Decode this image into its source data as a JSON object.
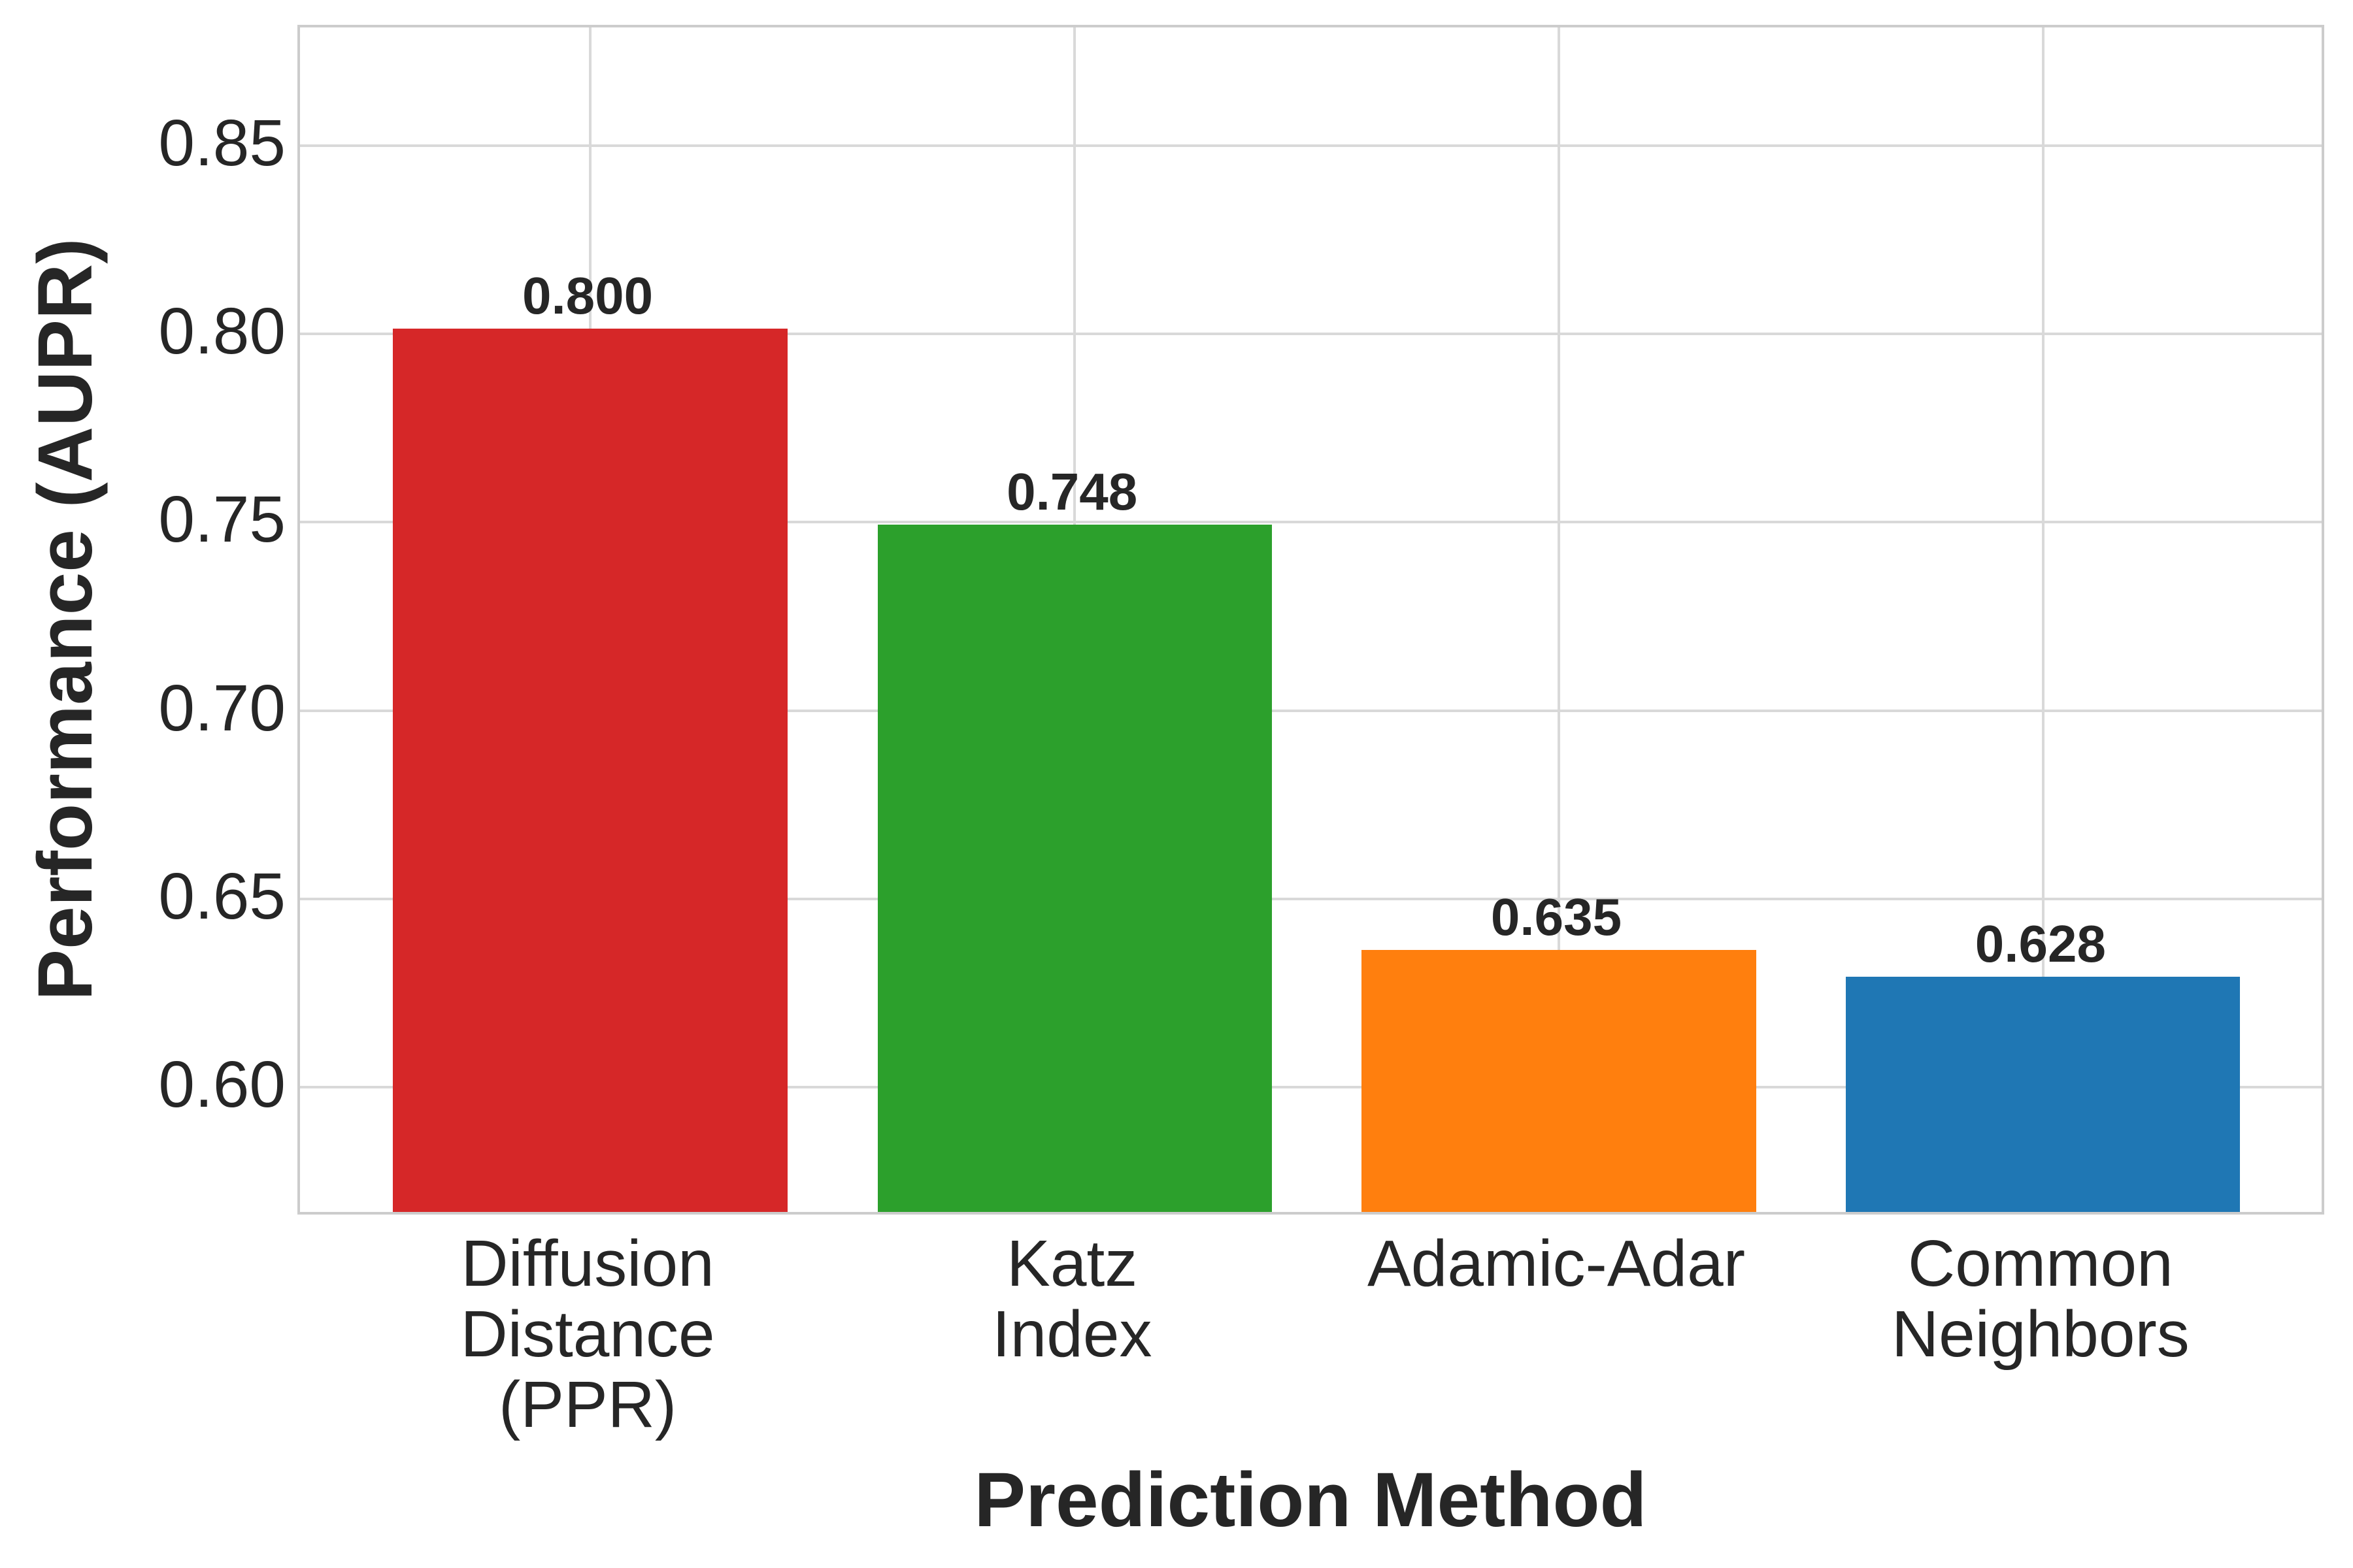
{
  "chart_data": {
    "type": "bar",
    "title": "",
    "xlabel": "Prediction Method",
    "ylabel": "Performance (AUPR)",
    "categories": [
      "Diffusion\nDistance\n(PPR)",
      "Katz\nIndex",
      "Adamic-Adar",
      "Common\nNeighbors"
    ],
    "values": [
      0.8,
      0.748,
      0.635,
      0.628
    ],
    "value_labels": [
      "0.800",
      "0.748",
      "0.635",
      "0.628"
    ],
    "bar_colors": [
      "#d62728",
      "#2ca02c",
      "#ff7f0e",
      "#1f77b4"
    ],
    "yticks": [
      0.6,
      0.65,
      0.7,
      0.75,
      0.8,
      0.85
    ],
    "ytick_labels": [
      "0.60",
      "0.65",
      "0.70",
      "0.75",
      "0.80",
      "0.85"
    ],
    "ylim": [
      0.5655,
      0.8814
    ],
    "grid": true,
    "legend": false,
    "background": "#ffffff",
    "grid_color": "#d9d9d9",
    "spine_color": "#cccccc",
    "text_color": "#262626"
  }
}
